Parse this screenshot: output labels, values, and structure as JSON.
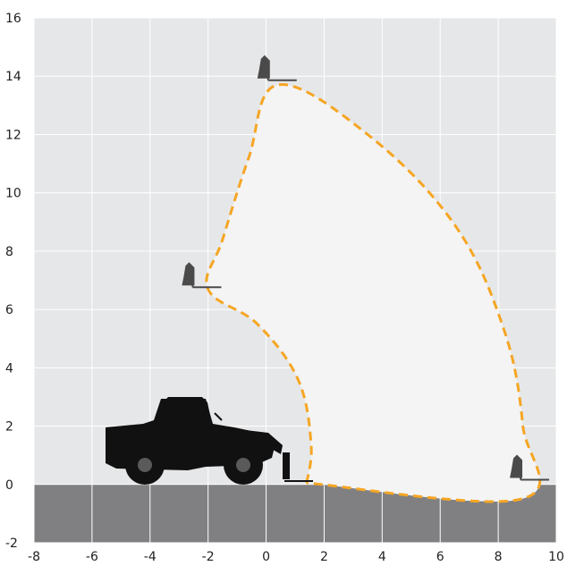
{
  "chart_data": {
    "type": "area",
    "title": "",
    "xlabel": "",
    "ylabel": "",
    "xlim": [
      -8,
      10
    ],
    "ylim": [
      -2,
      16
    ],
    "x_ticks": [
      "-8",
      "-6",
      "-4",
      "-2",
      "0",
      "2",
      "4",
      "6",
      "8",
      "10"
    ],
    "y_ticks": [
      "-2",
      "0",
      "2",
      "4",
      "6",
      "8",
      "10",
      "12",
      "14",
      "16"
    ],
    "grid": true,
    "ground_level": 0,
    "envelope": {
      "points": [
        {
          "x": 1.4,
          "y": 0.05
        },
        {
          "x": 1.55,
          "y": 1.4
        },
        {
          "x": 1.1,
          "y": 3.6
        },
        {
          "x": -0.3,
          "y": 5.5
        },
        {
          "x": -2.0,
          "y": 6.7
        },
        {
          "x": -1.5,
          "y": 8.4
        },
        {
          "x": -0.6,
          "y": 11.2
        },
        {
          "x": 0.4,
          "y": 13.7
        },
        {
          "x": 3.5,
          "y": 12.0
        },
        {
          "x": 6.5,
          "y": 8.9
        },
        {
          "x": 8.2,
          "y": 5.3
        },
        {
          "x": 8.85,
          "y": 2.0
        },
        {
          "x": 8.8,
          "y": -0.5
        },
        {
          "x": 1.4,
          "y": 0.05
        }
      ]
    },
    "load_markers": [
      {
        "x": 0.5,
        "y": 13.8
      },
      {
        "x": -2.1,
        "y": 6.7
      },
      {
        "x": 9.2,
        "y": 0.1
      }
    ],
    "colors": {
      "plot_background": "#e6e7e9",
      "ground": "#808083",
      "grid": "#ffffff",
      "envelope_fill": "#f4f4f5",
      "envelope_line": "#f5a623",
      "machine": "#111111",
      "marker": "#4a4a4a"
    },
    "icons": [
      "telehandler-silhouette",
      "fork-load-icon"
    ]
  }
}
